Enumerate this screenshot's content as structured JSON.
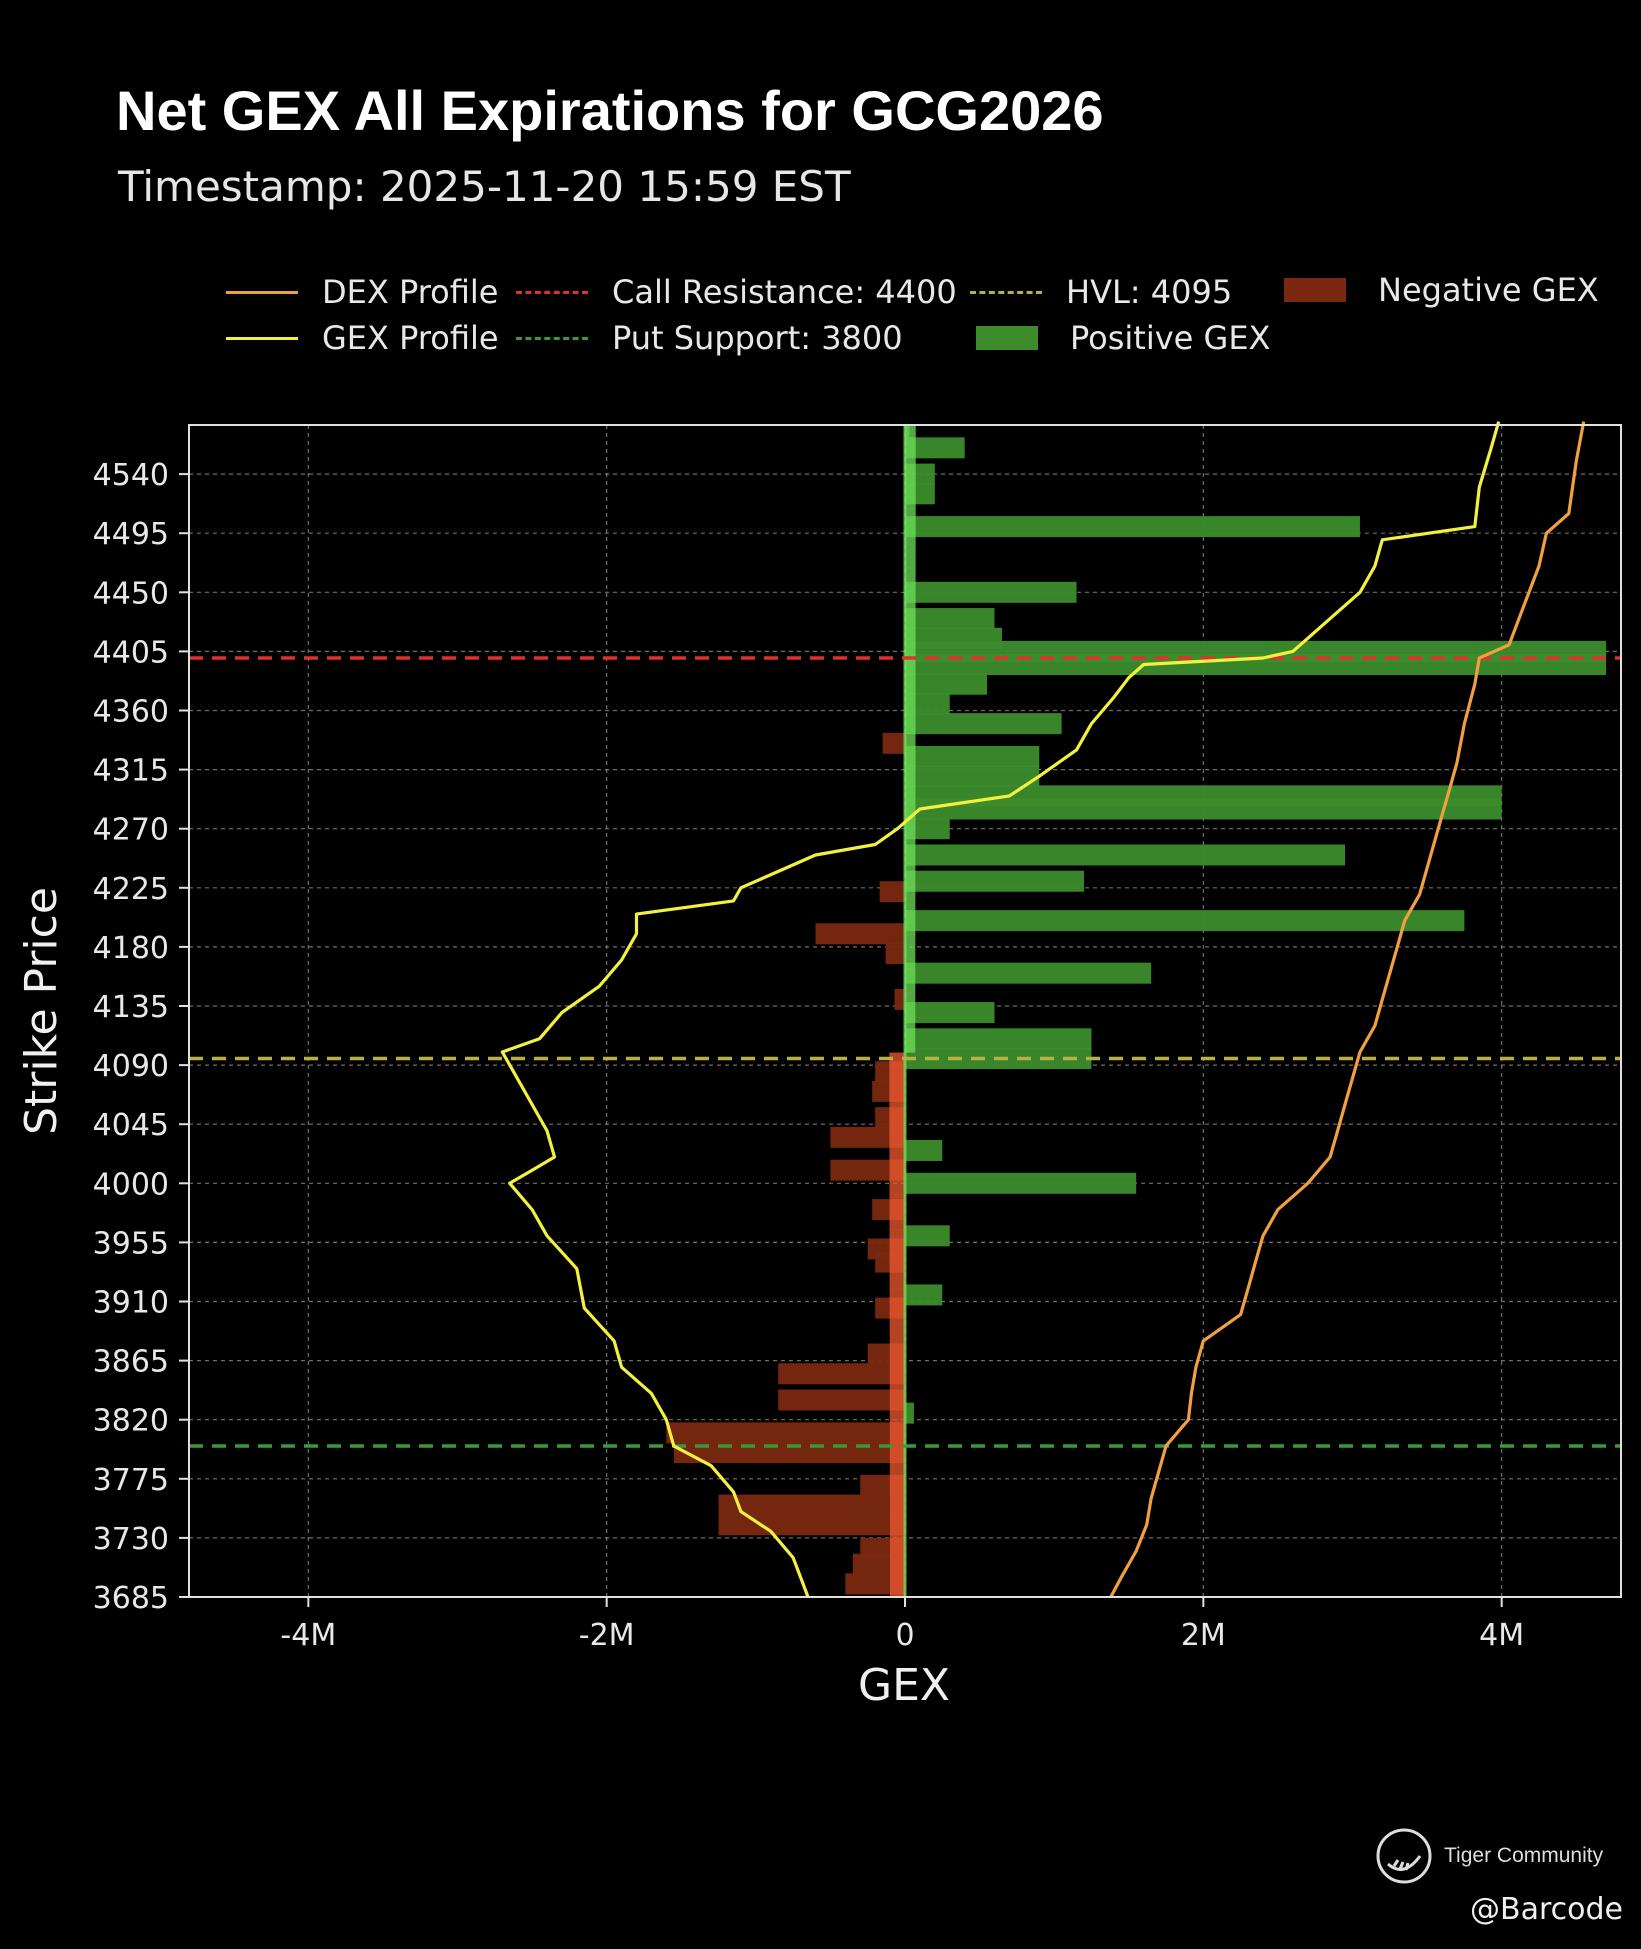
{
  "header": {
    "title": "Net GEX All Expirations for GCG2026",
    "subtitle": "Timestamp: 2025-11-20 15:59 EST"
  },
  "legend": {
    "dex": "DEX Profile",
    "gex": "GEX Profile",
    "call_resistance": "Call Resistance: 4400",
    "put_support": "Put Support: 3800",
    "hvl": "HVL: 4095",
    "negative": "Negative GEX",
    "positive": "Positive GEX"
  },
  "colors": {
    "background": "#000000",
    "dex_line": "#f0a040",
    "gex_line": "#f4f040",
    "call_resistance": "#e03030",
    "put_support": "#3a9a3a",
    "hvl": "#b8b040",
    "positive_bar": "#3c8c2c",
    "positive_near": "#6ee05a",
    "negative_bar": "#7a2810",
    "negative_near": "#f05a30",
    "grid": "#8a8a8a"
  },
  "watermark": {
    "brand": "Tiger Community",
    "author": "@Barcode",
    "icon": "tiger-icon"
  },
  "chart_data": {
    "type": "bar",
    "orientation": "horizontal",
    "xlabel": "GEX",
    "ylabel": "Strike Price",
    "xlim": [
      -4800000,
      4800000
    ],
    "ylim": [
      3685,
      4580
    ],
    "xticks": [
      -4000000,
      -2000000,
      0,
      2000000,
      4000000
    ],
    "xtick_labels": [
      "-4M",
      "-2M",
      "0",
      "2M",
      "4M"
    ],
    "yticks": [
      3685,
      3730,
      3775,
      3820,
      3865,
      3910,
      3955,
      4000,
      4045,
      4090,
      4135,
      4180,
      4225,
      4270,
      4315,
      4360,
      4405,
      4450,
      4495,
      4540
    ],
    "grid": true,
    "legend_position": "top",
    "levels": {
      "call_resistance": 4400,
      "put_support": 3800,
      "hvl": 4095
    },
    "bars": [
      {
        "strike": 4570,
        "value": 30000
      },
      {
        "strike": 4560,
        "value": 400000
      },
      {
        "strike": 4540,
        "value": 200000
      },
      {
        "strike": 4525,
        "value": 200000
      },
      {
        "strike": 4500,
        "value": 3050000
      },
      {
        "strike": 4450,
        "value": 1150000
      },
      {
        "strike": 4430,
        "value": 600000
      },
      {
        "strike": 4415,
        "value": 650000
      },
      {
        "strike": 4405,
        "value": 4700000
      },
      {
        "strike": 4395,
        "value": 4700000
      },
      {
        "strike": 4380,
        "value": 550000
      },
      {
        "strike": 4365,
        "value": 300000
      },
      {
        "strike": 4350,
        "value": 1050000
      },
      {
        "strike": 4335,
        "value": -150000
      },
      {
        "strike": 4325,
        "value": 900000
      },
      {
        "strike": 4310,
        "value": 900000
      },
      {
        "strike": 4295,
        "value": 4000000
      },
      {
        "strike": 4285,
        "value": 4000000
      },
      {
        "strike": 4270,
        "value": 300000
      },
      {
        "strike": 4250,
        "value": 2950000
      },
      {
        "strike": 4230,
        "value": 1200000
      },
      {
        "strike": 4222,
        "value": -170000
      },
      {
        "strike": 4200,
        "value": 3750000
      },
      {
        "strike": 4190,
        "value": -600000
      },
      {
        "strike": 4175,
        "value": -130000
      },
      {
        "strike": 4160,
        "value": 1650000
      },
      {
        "strike": 4140,
        "value": -70000
      },
      {
        "strike": 4130,
        "value": 600000
      },
      {
        "strike": 4110,
        "value": 1250000
      },
      {
        "strike": 4095,
        "value": 1250000
      },
      {
        "strike": 4085,
        "value": -200000
      },
      {
        "strike": 4070,
        "value": -220000
      },
      {
        "strike": 4050,
        "value": -200000
      },
      {
        "strike": 4035,
        "value": -500000
      },
      {
        "strike": 4025,
        "value": 250000
      },
      {
        "strike": 4010,
        "value": -500000
      },
      {
        "strike": 4000,
        "value": 1550000
      },
      {
        "strike": 3980,
        "value": -220000
      },
      {
        "strike": 3960,
        "value": 300000
      },
      {
        "strike": 3950,
        "value": -250000
      },
      {
        "strike": 3940,
        "value": -200000
      },
      {
        "strike": 3915,
        "value": 250000
      },
      {
        "strike": 3905,
        "value": -200000
      },
      {
        "strike": 3870,
        "value": -250000
      },
      {
        "strike": 3855,
        "value": -850000
      },
      {
        "strike": 3835,
        "value": -850000
      },
      {
        "strike": 3825,
        "value": 60000
      },
      {
        "strike": 3810,
        "value": -1600000
      },
      {
        "strike": 3795,
        "value": -1550000
      },
      {
        "strike": 3770,
        "value": -300000
      },
      {
        "strike": 3755,
        "value": -1250000
      },
      {
        "strike": 3740,
        "value": -1250000
      },
      {
        "strike": 3722,
        "value": -300000
      },
      {
        "strike": 3710,
        "value": -350000
      },
      {
        "strike": 3695,
        "value": -400000
      }
    ],
    "gex_profile": [
      [
        4580,
        3980000
      ],
      [
        4560,
        3930000
      ],
      [
        4530,
        3850000
      ],
      [
        4500,
        3820000
      ],
      [
        4490,
        3200000
      ],
      [
        4470,
        3150000
      ],
      [
        4450,
        3050000
      ],
      [
        4430,
        2850000
      ],
      [
        4415,
        2700000
      ],
      [
        4405,
        2600000
      ],
      [
        4400,
        2400000
      ],
      [
        4395,
        1600000
      ],
      [
        4385,
        1500000
      ],
      [
        4370,
        1400000
      ],
      [
        4350,
        1250000
      ],
      [
        4330,
        1150000
      ],
      [
        4310,
        900000
      ],
      [
        4295,
        700000
      ],
      [
        4285,
        100000
      ],
      [
        4270,
        -50000
      ],
      [
        4258,
        -200000
      ],
      [
        4250,
        -600000
      ],
      [
        4240,
        -800000
      ],
      [
        4225,
        -1100000
      ],
      [
        4215,
        -1150000
      ],
      [
        4205,
        -1800000
      ],
      [
        4190,
        -1800000
      ],
      [
        4170,
        -1900000
      ],
      [
        4150,
        -2050000
      ],
      [
        4130,
        -2300000
      ],
      [
        4110,
        -2450000
      ],
      [
        4100,
        -2700000
      ],
      [
        4080,
        -2600000
      ],
      [
        4060,
        -2500000
      ],
      [
        4040,
        -2400000
      ],
      [
        4020,
        -2350000
      ],
      [
        4010,
        -2500000
      ],
      [
        4000,
        -2650000
      ],
      [
        3980,
        -2500000
      ],
      [
        3960,
        -2400000
      ],
      [
        3935,
        -2200000
      ],
      [
        3905,
        -2150000
      ],
      [
        3880,
        -1950000
      ],
      [
        3860,
        -1900000
      ],
      [
        3840,
        -1700000
      ],
      [
        3820,
        -1600000
      ],
      [
        3800,
        -1550000
      ],
      [
        3785,
        -1300000
      ],
      [
        3765,
        -1150000
      ],
      [
        3750,
        -1100000
      ],
      [
        3735,
        -900000
      ],
      [
        3715,
        -750000
      ],
      [
        3700,
        -700000
      ],
      [
        3685,
        -650000
      ]
    ],
    "dex_profile": [
      [
        4580,
        4550000
      ],
      [
        4550,
        4500000
      ],
      [
        4510,
        4450000
      ],
      [
        4495,
        4300000
      ],
      [
        4470,
        4250000
      ],
      [
        4440,
        4150000
      ],
      [
        4410,
        4050000
      ],
      [
        4400,
        3850000
      ],
      [
        4380,
        3820000
      ],
      [
        4350,
        3750000
      ],
      [
        4320,
        3700000
      ],
      [
        4300,
        3650000
      ],
      [
        4280,
        3600000
      ],
      [
        4260,
        3550000
      ],
      [
        4240,
        3500000
      ],
      [
        4220,
        3450000
      ],
      [
        4200,
        3350000
      ],
      [
        4180,
        3300000
      ],
      [
        4160,
        3250000
      ],
      [
        4140,
        3200000
      ],
      [
        4120,
        3150000
      ],
      [
        4100,
        3050000
      ],
      [
        4080,
        3000000
      ],
      [
        4060,
        2950000
      ],
      [
        4040,
        2900000
      ],
      [
        4020,
        2850000
      ],
      [
        4000,
        2700000
      ],
      [
        3980,
        2500000
      ],
      [
        3960,
        2400000
      ],
      [
        3940,
        2350000
      ],
      [
        3920,
        2300000
      ],
      [
        3900,
        2250000
      ],
      [
        3880,
        2000000
      ],
      [
        3860,
        1950000
      ],
      [
        3840,
        1920000
      ],
      [
        3820,
        1900000
      ],
      [
        3800,
        1750000
      ],
      [
        3780,
        1700000
      ],
      [
        3760,
        1650000
      ],
      [
        3740,
        1620000
      ],
      [
        3720,
        1550000
      ],
      [
        3700,
        1450000
      ],
      [
        3685,
        1380000
      ]
    ]
  }
}
